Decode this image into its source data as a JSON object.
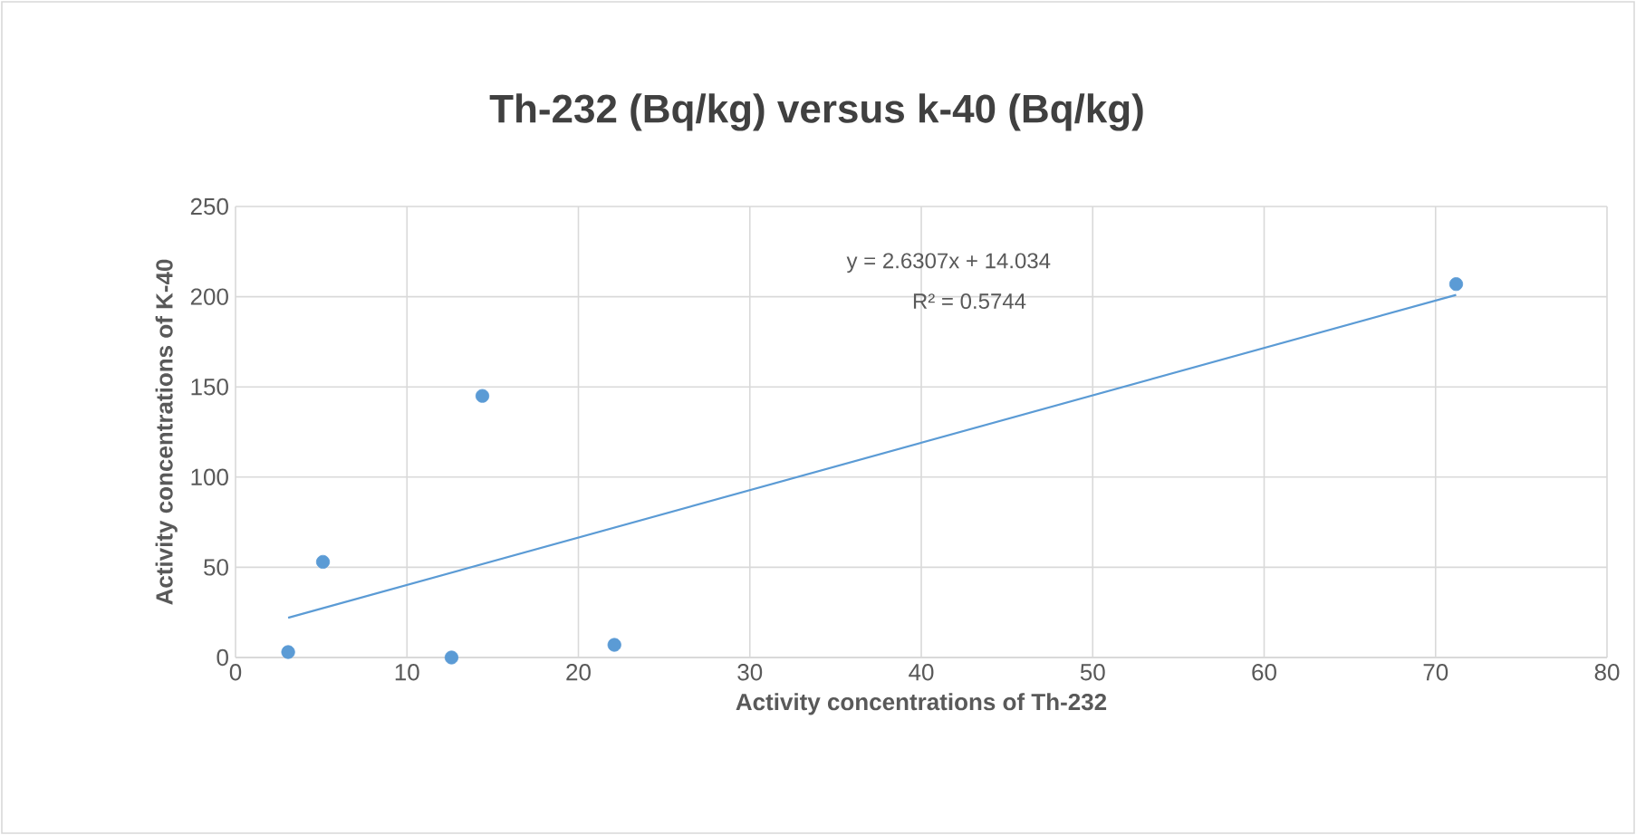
{
  "chart_data": {
    "type": "scatter",
    "title": "Th-232 (Bq/kg) versus k-40 (Bq/kg)",
    "xlabel": "Activity concentrations  of Th-232",
    "ylabel": "Activity concentrations  of K-40",
    "series": [
      {
        "color": "#5b9bd5",
        "marker": "circle",
        "x": [
          3.07,
          5.1,
          12.6,
          14.4,
          22.1,
          71.2
        ],
        "values": [
          3,
          53,
          0,
          145,
          7,
          207
        ]
      },
      {
        "type": "line",
        "color": "#5b9bd5",
        "marker": "none",
        "line_style": "solid",
        "x": [
          3.07,
          71.2
        ],
        "values": [
          22,
          201
        ]
      }
    ],
    "annotations": [
      "y = 2.6307x + 14.034",
      "R² = 0.5744"
    ],
    "xlim": [
      0,
      80
    ],
    "xticks": [
      0,
      10,
      20,
      30,
      40,
      50,
      60,
      70,
      80
    ],
    "ylim": [
      0,
      250
    ],
    "yticks": [
      0,
      50,
      100,
      150,
      200,
      250
    ],
    "grid": true
  }
}
